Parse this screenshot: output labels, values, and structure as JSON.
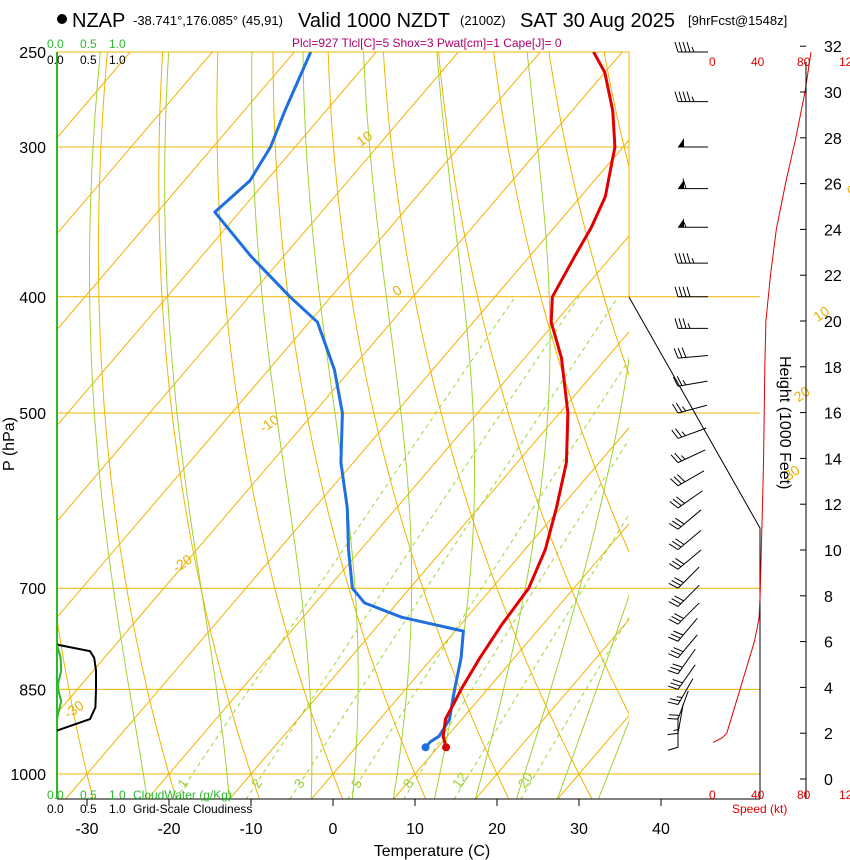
{
  "header": {
    "station": "NZAP",
    "location": "-38.741°,176.085° (45,91)",
    "valid": "Valid 1000 NZDT",
    "utc": "(2100Z)",
    "date": "SAT 30 Aug 2025",
    "forecast": "[9hrFcst@1548z]",
    "params": "Plcl=927 Tlcl[C]=5 Shox=3 Pwat[cm]=1 Cape[J]= 0"
  },
  "colors": {
    "temperature": "#e00000",
    "dewpoint": "#1f6fe0",
    "isotherm": "#f0b400",
    "dry_adiabat": "#f0b400",
    "moist_adiabat": "#9fd234",
    "mixing_ratio": "#9fd234",
    "cloud_water": "#2eb82e",
    "cloudiness": "#000000",
    "height_curve": "#e00000"
  },
  "cloud_scale": {
    "top_values": [
      "0.0",
      "0.5",
      "1.0"
    ],
    "top_black_values": [
      "0.0",
      "0.5",
      "1.0"
    ],
    "bottom_values": [
      "0.0",
      "0.5",
      "1.0"
    ],
    "bottom_black_values": [
      "0.0",
      "0.5",
      "1.0"
    ],
    "cloud_water_label": "CloudWater (g/Kg)",
    "cloudiness_label": "Grid-Scale Cloudiness"
  },
  "speed_scale": {
    "ticks": [
      "0",
      "40",
      "80",
      "12"
    ],
    "label": "Speed (kt)"
  },
  "chart_data": {
    "type": "line",
    "title": "NZAP Valid 1000 NZDT (2100Z) SAT 30 Aug 2025",
    "xlabel": "Temperature (C)",
    "ylabel": "P (hPa)",
    "y2label": "Height (1000 Feet)",
    "xlim": [
      -35,
      45
    ],
    "ylim": [
      1050,
      250
    ],
    "x_ticks": [
      -30,
      -20,
      -10,
      0,
      10,
      20,
      30,
      40
    ],
    "x_tick_labels": [
      "-30",
      "-20",
      "-10",
      "0",
      "10",
      "20",
      "30",
      "40"
    ],
    "p_ticks": [
      250,
      300,
      400,
      500,
      700,
      850,
      1000
    ],
    "p_tick_labels": [
      "250",
      "300",
      "400",
      "500",
      "700",
      "850",
      "1000"
    ],
    "height_ticks": [
      0,
      2,
      4,
      6,
      8,
      10,
      12,
      14,
      16,
      18,
      20,
      22,
      24,
      26,
      28,
      30,
      32
    ],
    "height_tick_labels": [
      "0",
      "2",
      "4",
      "6",
      "8",
      "10",
      "12",
      "14",
      "16",
      "18",
      "20",
      "22",
      "24",
      "26",
      "28",
      "30",
      "32"
    ],
    "isotherm_labels": [
      {
        "text": "10",
        "p": 300,
        "t": -62
      },
      {
        "text": "0",
        "p": 400,
        "t": -42
      },
      {
        "text": "-10",
        "p": 520,
        "t": -44
      },
      {
        "text": "-20",
        "p": 680,
        "t": -40
      },
      {
        "text": "-30",
        "p": 900,
        "t": -38
      },
      {
        "text": "0",
        "p": 330,
        "t": 3
      },
      {
        "text": "10",
        "p": 420,
        "t": 12
      },
      {
        "text": "20",
        "p": 490,
        "t": 18
      },
      {
        "text": "30",
        "p": 570,
        "t": 25
      }
    ],
    "mixing_ratio_labels": [
      {
        "text": "1",
        "p": 1030,
        "t": -16.5
      },
      {
        "text": "2",
        "p": 1030,
        "t": -7.5
      },
      {
        "text": "3",
        "p": 1030,
        "t": -2.3
      },
      {
        "text": "5",
        "p": 1030,
        "t": 4.7
      },
      {
        "text": "8",
        "p": 1030,
        "t": 11
      },
      {
        "text": "12",
        "p": 1030,
        "t": 17
      },
      {
        "text": "20",
        "p": 1030,
        "t": 25
      }
    ],
    "mixing_ratios": [
      1,
      2,
      3,
      5,
      8,
      12,
      20
    ],
    "series": [
      {
        "name": "Temperature",
        "color": "#e00000",
        "points": [
          [
            950,
            11.0
          ],
          [
            930,
            9.5
          ],
          [
            900,
            8.0
          ],
          [
            870,
            7.3
          ],
          [
            850,
            6.8
          ],
          [
            800,
            5.8
          ],
          [
            750,
            5.0
          ],
          [
            700,
            4.5
          ],
          [
            650,
            2.5
          ],
          [
            600,
            -0.5
          ],
          [
            550,
            -4.0
          ],
          [
            500,
            -9.0
          ],
          [
            450,
            -15.5
          ],
          [
            420,
            -20.5
          ],
          [
            400,
            -23.0
          ],
          [
            370,
            -24.5
          ],
          [
            350,
            -25.5
          ],
          [
            330,
            -27.0
          ],
          [
            300,
            -31.0
          ],
          [
            280,
            -35.0
          ],
          [
            260,
            -40.0
          ],
          [
            250,
            -43.5
          ]
        ]
      },
      {
        "name": "Dewpoint",
        "color": "#1f6fe0",
        "points": [
          [
            950,
            8.5
          ],
          [
            940,
            8.5
          ],
          [
            930,
            9.0
          ],
          [
            900,
            8.5
          ],
          [
            870,
            7.0
          ],
          [
            850,
            6.0
          ],
          [
            800,
            3.5
          ],
          [
            760,
            1.0
          ],
          [
            740,
            -8.0
          ],
          [
            720,
            -14.0
          ],
          [
            700,
            -17.0
          ],
          [
            650,
            -21.5
          ],
          [
            600,
            -26.0
          ],
          [
            550,
            -31.5
          ],
          [
            500,
            -36.5
          ],
          [
            460,
            -42.0
          ],
          [
            420,
            -49.0
          ],
          [
            400,
            -55.0
          ],
          [
            370,
            -64.0
          ],
          [
            340,
            -73.0
          ],
          [
            320,
            -72.0
          ],
          [
            300,
            -73.0
          ],
          [
            280,
            -75.0
          ],
          [
            250,
            -78.0
          ]
        ]
      }
    ],
    "cloud_water": {
      "name": "CloudWater (g/Kg)",
      "xlim": [
        0,
        1
      ],
      "points": [
        [
          780,
          0.0
        ],
        [
          800,
          0.06
        ],
        [
          820,
          0.07
        ],
        [
          840,
          0.02
        ],
        [
          850,
          0.02
        ],
        [
          870,
          0.07
        ],
        [
          890,
          0.02
        ],
        [
          900,
          0.0
        ]
      ]
    },
    "cloudiness": {
      "name": "Grid-Scale Cloudiness",
      "xlim": [
        0,
        1
      ],
      "points": [
        [
          780,
          0.0
        ],
        [
          790,
          0.55
        ],
        [
          800,
          0.62
        ],
        [
          820,
          0.65
        ],
        [
          850,
          0.65
        ],
        [
          880,
          0.64
        ],
        [
          900,
          0.55
        ],
        [
          920,
          0.0
        ]
      ]
    },
    "height_curve": {
      "name": "Height vs Speed",
      "speed_ticks": [
        0,
        40,
        80
      ],
      "points": [
        [
          1.6,
          0
        ],
        [
          1.8,
          8
        ],
        [
          2.0,
          12
        ],
        [
          3.0,
          18
        ],
        [
          4.0,
          24
        ],
        [
          5.0,
          30
        ],
        [
          6.0,
          36
        ],
        [
          7.0,
          40
        ],
        [
          8.0,
          41
        ],
        [
          10.0,
          42
        ],
        [
          12.0,
          43
        ],
        [
          14.0,
          44
        ],
        [
          18.0,
          45
        ],
        [
          20.0,
          46
        ],
        [
          22.0,
          50
        ],
        [
          24.0,
          55
        ],
        [
          26.0,
          63
        ],
        [
          28.0,
          72
        ],
        [
          30.0,
          80
        ],
        [
          32.0,
          86
        ]
      ]
    },
    "wind_barbs": [
      {
        "p": 250,
        "speed": 45,
        "dir": 270
      },
      {
        "p": 275,
        "speed": 45,
        "dir": 270
      },
      {
        "p": 300,
        "speed": 50,
        "dir": 270
      },
      {
        "p": 325,
        "speed": 60,
        "dir": 270
      },
      {
        "p": 350,
        "speed": 55,
        "dir": 270
      },
      {
        "p": 375,
        "speed": 45,
        "dir": 270
      },
      {
        "p": 400,
        "speed": 40,
        "dir": 270
      },
      {
        "p": 425,
        "speed": 35,
        "dir": 270
      },
      {
        "p": 450,
        "speed": 30,
        "dir": 265
      },
      {
        "p": 475,
        "speed": 25,
        "dir": 260
      },
      {
        "p": 500,
        "speed": 25,
        "dir": 255
      },
      {
        "p": 525,
        "speed": 25,
        "dir": 250
      },
      {
        "p": 550,
        "speed": 25,
        "dir": 245
      },
      {
        "p": 575,
        "speed": 30,
        "dir": 240
      },
      {
        "p": 600,
        "speed": 30,
        "dir": 235
      },
      {
        "p": 625,
        "speed": 30,
        "dir": 230
      },
      {
        "p": 650,
        "speed": 30,
        "dir": 230
      },
      {
        "p": 675,
        "speed": 30,
        "dir": 230
      },
      {
        "p": 700,
        "speed": 30,
        "dir": 225
      },
      {
        "p": 725,
        "speed": 30,
        "dir": 225
      },
      {
        "p": 750,
        "speed": 30,
        "dir": 225
      },
      {
        "p": 775,
        "speed": 30,
        "dir": 220
      },
      {
        "p": 800,
        "speed": 30,
        "dir": 220
      },
      {
        "p": 825,
        "speed": 30,
        "dir": 215
      },
      {
        "p": 850,
        "speed": 30,
        "dir": 215
      },
      {
        "p": 875,
        "speed": 25,
        "dir": 210
      },
      {
        "p": 900,
        "speed": 20,
        "dir": 200
      },
      {
        "p": 925,
        "speed": 15,
        "dir": 190
      },
      {
        "p": 950,
        "speed": 10,
        "dir": 180
      }
    ]
  }
}
